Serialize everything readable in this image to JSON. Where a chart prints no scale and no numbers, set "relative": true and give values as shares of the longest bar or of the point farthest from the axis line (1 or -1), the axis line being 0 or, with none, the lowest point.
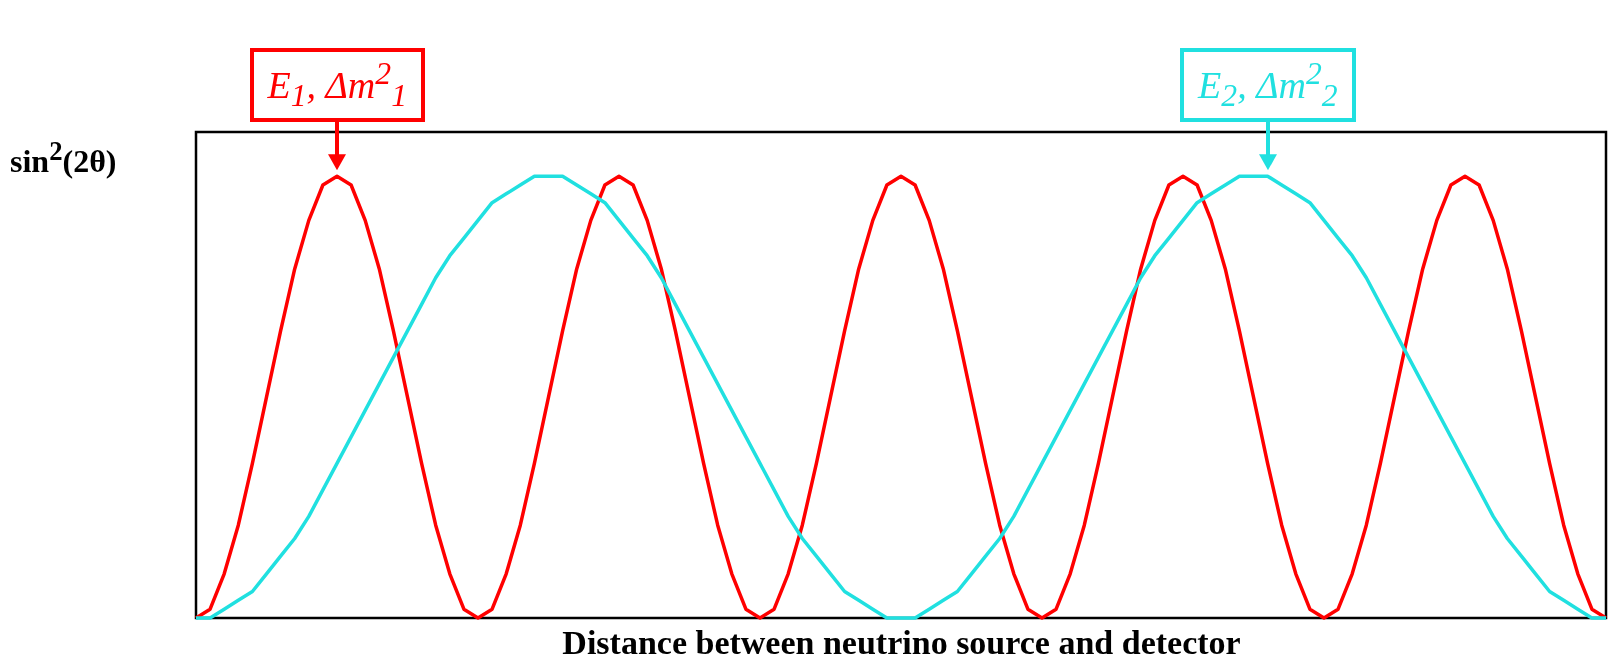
{
  "chart_data": {
    "type": "line",
    "relative": true,
    "xlabel": "Distance between neutrino source and detector",
    "ylabel": "sin$^{2}$(2θ)",
    "tick_labels": false,
    "grid": false,
    "categories": [
      null,
      null,
      null,
      null,
      null,
      null,
      null,
      null,
      null,
      null,
      null,
      null,
      null,
      null,
      null,
      null,
      null,
      null,
      null,
      null,
      null,
      null,
      null,
      null,
      null,
      null,
      null,
      null,
      null,
      null,
      null,
      null,
      null,
      null,
      null,
      null,
      null,
      null,
      null,
      null,
      null,
      null,
      null,
      null,
      null,
      null,
      null,
      null,
      null,
      null,
      null,
      null,
      null,
      null,
      null,
      null,
      null,
      null,
      null,
      null,
      null,
      null,
      null,
      null,
      null,
      null,
      null,
      null,
      null,
      null,
      null,
      null,
      null,
      null,
      null,
      null,
      null,
      null,
      null,
      null,
      null,
      null,
      null,
      null,
      null,
      null,
      null,
      null,
      null,
      null,
      null,
      null,
      null,
      null,
      null,
      null,
      null,
      null,
      null,
      null,
      null
    ],
    "series": [
      {
        "color": "#ff0000",
        "values": [
          0,
          0.02,
          0.1,
          0.21,
          0.35,
          0.5,
          0.65,
          0.79,
          0.9,
          0.98,
          1,
          0.98,
          0.9,
          0.79,
          0.65,
          0.5,
          0.35,
          0.21,
          0.1,
          0.02,
          0,
          0.02,
          0.1,
          0.21,
          0.35,
          0.5,
          0.65,
          0.79,
          0.9,
          0.98,
          1,
          0.98,
          0.9,
          0.79,
          0.65,
          0.5,
          0.35,
          0.21,
          0.1,
          0.02,
          0,
          0.02,
          0.1,
          0.21,
          0.35,
          0.5,
          0.65,
          0.79,
          0.9,
          0.98,
          1,
          0.98,
          0.9,
          0.79,
          0.65,
          0.5,
          0.35,
          0.21,
          0.1,
          0.02,
          0,
          0.02,
          0.1,
          0.21,
          0.35,
          0.5,
          0.65,
          0.79,
          0.9,
          0.98,
          1,
          0.98,
          0.9,
          0.79,
          0.65,
          0.5,
          0.35,
          0.21,
          0.1,
          0.02,
          0,
          0.02,
          0.1,
          0.21,
          0.35,
          0.5,
          0.65,
          0.79,
          0.9,
          0.98,
          1,
          0.98,
          0.9,
          0.79,
          0.65,
          0.5,
          0.35,
          0.21,
          0.1,
          0.02,
          0
        ]
      },
      {
        "color": "#20e0e0",
        "values": [
          0,
          0,
          0.02,
          0.04,
          0.06,
          0.1,
          0.14,
          0.18,
          0.23,
          0.29,
          0.35,
          0.41,
          0.47,
          0.53,
          0.59,
          0.65,
          0.71,
          0.77,
          0.82,
          0.86,
          0.9,
          0.94,
          0.96,
          0.98,
          1,
          1,
          1,
          0.98,
          0.96,
          0.94,
          0.9,
          0.86,
          0.82,
          0.77,
          0.71,
          0.65,
          0.59,
          0.53,
          0.47,
          0.41,
          0.35,
          0.29,
          0.23,
          0.18,
          0.14,
          0.1,
          0.06,
          0.04,
          0.02,
          0,
          0,
          0,
          0.02,
          0.04,
          0.06,
          0.1,
          0.14,
          0.18,
          0.23,
          0.29,
          0.35,
          0.41,
          0.47,
          0.53,
          0.59,
          0.65,
          0.71,
          0.77,
          0.82,
          0.86,
          0.9,
          0.94,
          0.96,
          0.98,
          1,
          1,
          1,
          0.98,
          0.96,
          0.94,
          0.9,
          0.86,
          0.82,
          0.77,
          0.71,
          0.65,
          0.59,
          0.53,
          0.47,
          0.41,
          0.35,
          0.29,
          0.23,
          0.18,
          0.14,
          0.1,
          0.06,
          0.04,
          0.02,
          0,
          0
        ]
      }
    ],
    "annotations": [
      "E$_{1}$, Δm$^{2}$$_{1}$",
      "E$_{2}$, Δm$^{2}$$_{2}$"
    ]
  }
}
